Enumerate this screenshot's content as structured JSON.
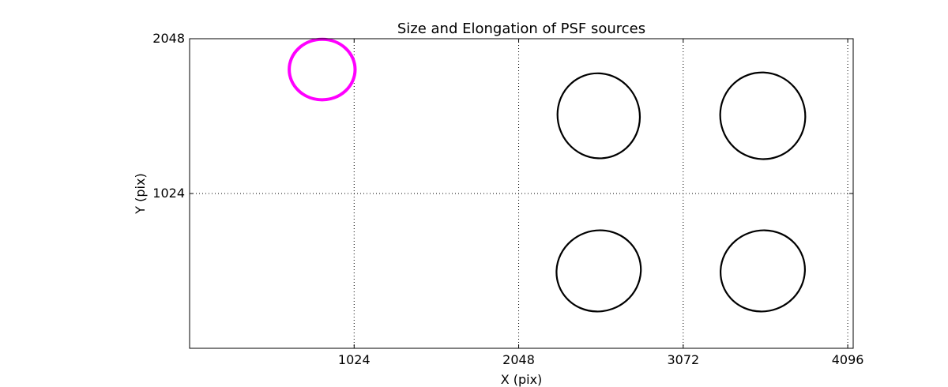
{
  "chart_data": {
    "type": "scatter",
    "title": "Size and Elongation of PSF sources",
    "xlabel": "X (pix)",
    "ylabel": "Y (pix)",
    "xlim": [
      0,
      4130
    ],
    "ylim": [
      0,
      2048
    ],
    "x_ticks": [
      1024,
      2048,
      3072,
      4096
    ],
    "x_tick_labels": [
      "1024",
      "2048",
      "3072",
      "4096"
    ],
    "y_ticks": [
      1024,
      2048
    ],
    "y_tick_labels": [
      "1024",
      "2048"
    ],
    "grid": true,
    "grid_style": "dotted",
    "marker": "ellipse",
    "sources": [
      {
        "x": 825,
        "y": 1844,
        "width": 410,
        "height": 400,
        "angle_deg": 0,
        "color": "#ff00ff",
        "highlight": true
      },
      {
        "x": 2546,
        "y": 1538,
        "width": 510,
        "height": 565,
        "angle_deg": -20,
        "color": "#000000",
        "highlight": false
      },
      {
        "x": 3567,
        "y": 1538,
        "width": 528,
        "height": 575,
        "angle_deg": -20,
        "color": "#000000",
        "highlight": false
      },
      {
        "x": 2546,
        "y": 512,
        "width": 528,
        "height": 534,
        "angle_deg": -20,
        "color": "#000000",
        "highlight": false
      },
      {
        "x": 3567,
        "y": 512,
        "width": 528,
        "height": 534,
        "angle_deg": -20,
        "color": "#000000",
        "highlight": false
      }
    ]
  }
}
